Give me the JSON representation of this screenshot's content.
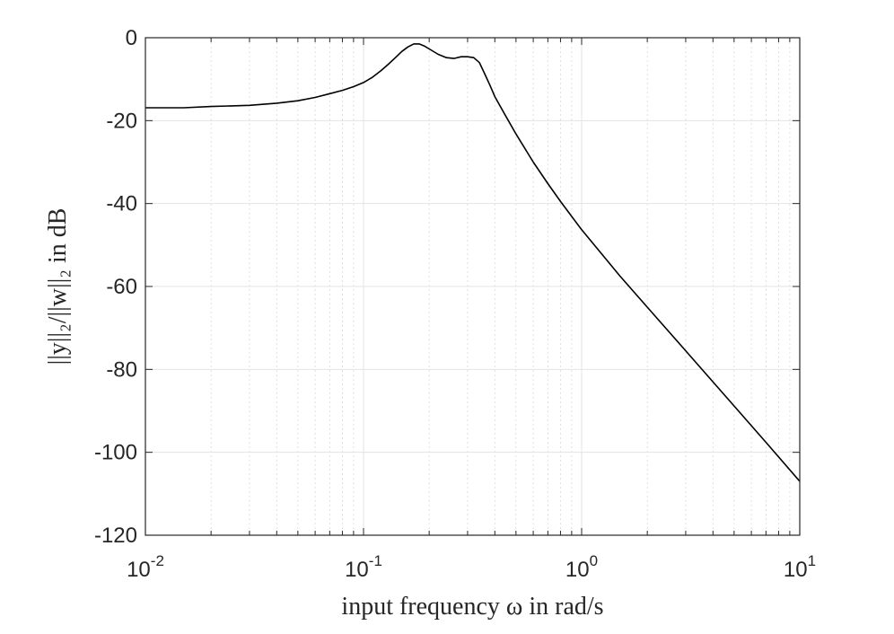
{
  "chart_data": {
    "type": "line",
    "xscale": "log",
    "xlim": [
      0.01,
      10
    ],
    "ylim": [
      -120,
      0
    ],
    "grid": true,
    "xlabel": "input frequency ω in rad/s",
    "ylabel": "||y||₂/||w||₂ in dB",
    "x_ticks": [
      {
        "base": "10",
        "exp": "-2"
      },
      {
        "base": "10",
        "exp": "-1"
      },
      {
        "base": "10",
        "exp": "0"
      },
      {
        "base": "10",
        "exp": "1"
      }
    ],
    "y_ticks": [
      "0",
      "-20",
      "-40",
      "-60",
      "-80",
      "-100",
      "-120"
    ],
    "y_tick_values": [
      0,
      -20,
      -40,
      -60,
      -80,
      -100,
      -120
    ],
    "x_tick_values": [
      0.01,
      0.1,
      1,
      10
    ],
    "series": [
      {
        "color": "#000000",
        "x": [
          0.01,
          0.015,
          0.02,
          0.03,
          0.04,
          0.05,
          0.06,
          0.07,
          0.08,
          0.09,
          0.1,
          0.11,
          0.12,
          0.13,
          0.14,
          0.15,
          0.16,
          0.17,
          0.18,
          0.19,
          0.2,
          0.22,
          0.24,
          0.26,
          0.28,
          0.3,
          0.32,
          0.34,
          0.36,
          0.38,
          0.4,
          0.45,
          0.5,
          0.6,
          0.7,
          0.8,
          1.0,
          1.5,
          2,
          3,
          5,
          7,
          10
        ],
        "y": [
          -16.9,
          -16.9,
          -16.6,
          -16.3,
          -15.8,
          -15.2,
          -14.4,
          -13.5,
          -12.7,
          -11.8,
          -10.8,
          -9.5,
          -8.0,
          -6.4,
          -4.8,
          -3.3,
          -2.2,
          -1.5,
          -1.5,
          -2.0,
          -2.7,
          -4.0,
          -4.8,
          -5.0,
          -4.6,
          -4.6,
          -4.8,
          -6.0,
          -8.8,
          -11.5,
          -14.2,
          -19.0,
          -23.2,
          -30.0,
          -35.2,
          -39.5,
          -46.3,
          -57.5,
          -65.0,
          -75.5,
          -88.8,
          -97.6,
          -107.0
        ]
      }
    ]
  }
}
